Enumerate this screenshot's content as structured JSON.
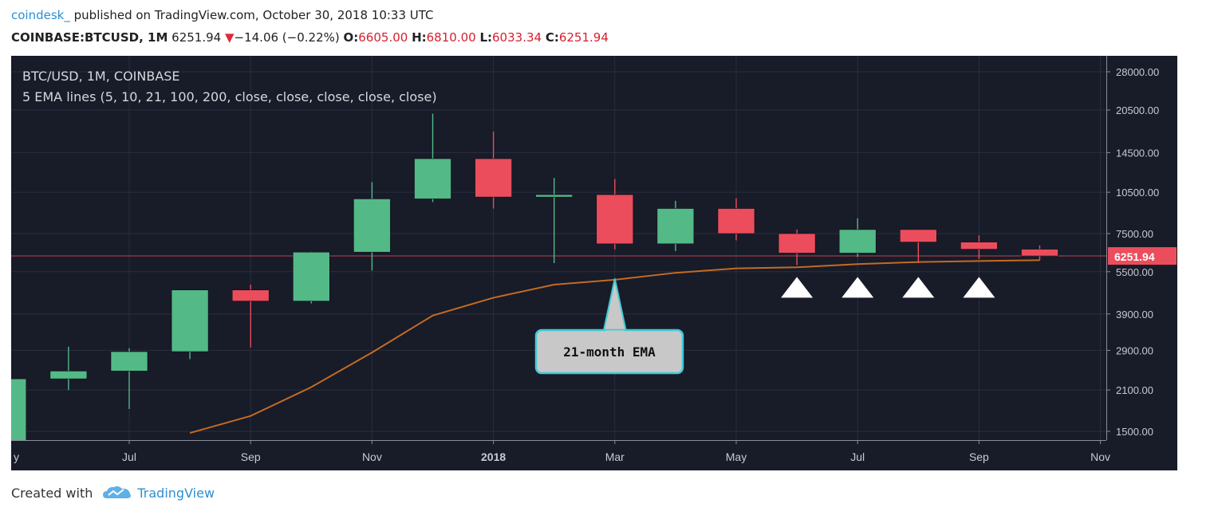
{
  "header": {
    "user": "coindesk_",
    "published_text": "published on TradingView.com, October 30, 2018 10:33 UTC",
    "symbol": "COINBASE:BTCUSD, 1M",
    "last": "6251.94",
    "change_arrow": "▼",
    "change": "−14.06 (−0.22%)",
    "o_label": "O:",
    "o_val": "6605.00",
    "h_label": "H:",
    "h_val": "6810.00",
    "l_label": "L:",
    "l_val": "6033.34",
    "c_label": "C:",
    "c_val": "6251.94"
  },
  "chart_overlay": {
    "title": "BTC/USD, 1M, COINBASE",
    "subtitle": "5 EMA lines (5, 10, 21, 100, 200, close, close, close, close, close)"
  },
  "footer": {
    "created_with": "Created with",
    "brand": "TradingView",
    "logo_icon": "tradingview-cloud-icon"
  },
  "colors": {
    "background": "#181b28",
    "up": "#53b987",
    "down": "#eb4d5c",
    "ema": "#c36b23",
    "grid": "#2a2e3e",
    "last_price_tag": "#eb4d5c",
    "callout_fill": "#c8c8c8",
    "callout_border": "#3fc9d6"
  },
  "chart_data": {
    "type": "candlestick",
    "interval": "1M",
    "y_scale": "log",
    "y_ticks": [
      1500,
      2100,
      2900,
      3900,
      5500,
      7500,
      10500,
      14500,
      20500,
      28000
    ],
    "y_tick_labels": [
      "1500.00",
      "2100.00",
      "2900.00",
      "3900.00",
      "5500.00",
      "7500.00",
      "10500.00",
      "14500.00",
      "20500.00",
      "28000.00"
    ],
    "x_tick_labels": [
      {
        "month": "2017-05",
        "label": "y"
      },
      {
        "month": "2017-07",
        "label": "Jul"
      },
      {
        "month": "2017-09",
        "label": "Sep"
      },
      {
        "month": "2017-11",
        "label": "Nov"
      },
      {
        "month": "2018-01",
        "label": "2018"
      },
      {
        "month": "2018-03",
        "label": "Mar"
      },
      {
        "month": "2018-05",
        "label": "May"
      },
      {
        "month": "2018-07",
        "label": "Jul"
      },
      {
        "month": "2018-09",
        "label": "Sep"
      },
      {
        "month": "2018-11",
        "label": "Nov"
      }
    ],
    "candles": [
      {
        "month": "2017-05",
        "open": 1350,
        "high": 2300,
        "low": 1350,
        "close": 2300
      },
      {
        "month": "2017-06",
        "open": 2300,
        "high": 2990,
        "low": 2100,
        "close": 2450
      },
      {
        "month": "2017-07",
        "open": 2450,
        "high": 2950,
        "low": 1800,
        "close": 2870
      },
      {
        "month": "2017-08",
        "open": 2870,
        "high": 4750,
        "low": 2700,
        "close": 4740
      },
      {
        "month": "2017-09",
        "open": 4740,
        "high": 4950,
        "low": 2970,
        "close": 4330
      },
      {
        "month": "2017-10",
        "open": 4330,
        "high": 6470,
        "low": 4250,
        "close": 6450
      },
      {
        "month": "2017-11",
        "open": 6450,
        "high": 11400,
        "low": 5550,
        "close": 9950
      },
      {
        "month": "2017-12",
        "open": 9950,
        "high": 19900,
        "low": 9700,
        "close": 13800
      },
      {
        "month": "2018-01",
        "open": 13800,
        "high": 17200,
        "low": 9200,
        "close": 10100
      },
      {
        "month": "2018-02",
        "open": 10100,
        "high": 11800,
        "low": 5900,
        "close": 10300
      },
      {
        "month": "2018-03",
        "open": 10300,
        "high": 11700,
        "low": 6600,
        "close": 6900
      },
      {
        "month": "2018-04",
        "open": 6900,
        "high": 9800,
        "low": 6500,
        "close": 9200
      },
      {
        "month": "2018-05",
        "open": 9200,
        "high": 10000,
        "low": 7100,
        "close": 7500
      },
      {
        "month": "2018-06",
        "open": 7500,
        "high": 7750,
        "low": 5800,
        "close": 6400
      },
      {
        "month": "2018-07",
        "open": 6400,
        "high": 8500,
        "low": 6200,
        "close": 7750
      },
      {
        "month": "2018-08",
        "open": 7750,
        "high": 7750,
        "low": 5900,
        "close": 7000
      },
      {
        "month": "2018-09",
        "open": 7000,
        "high": 7400,
        "low": 6100,
        "close": 6605
      },
      {
        "month": "2018-10",
        "open": 6605,
        "high": 6810,
        "low": 6033.34,
        "close": 6251.94
      }
    ],
    "ema21": [
      {
        "month": "2017-08",
        "value": 1480
      },
      {
        "month": "2017-09",
        "value": 1700
      },
      {
        "month": "2017-10",
        "value": 2150
      },
      {
        "month": "2017-11",
        "value": 2850
      },
      {
        "month": "2017-12",
        "value": 3850
      },
      {
        "month": "2018-01",
        "value": 4450
      },
      {
        "month": "2018-02",
        "value": 4950
      },
      {
        "month": "2018-03",
        "value": 5150
      },
      {
        "month": "2018-04",
        "value": 5450
      },
      {
        "month": "2018-05",
        "value": 5650
      },
      {
        "month": "2018-06",
        "value": 5700
      },
      {
        "month": "2018-07",
        "value": 5850
      },
      {
        "month": "2018-08",
        "value": 5950
      },
      {
        "month": "2018-09",
        "value": 6000
      },
      {
        "month": "2018-10",
        "value": 6040
      }
    ],
    "last_price": 6251.94,
    "last_price_label": "6251.94",
    "annotations": [
      {
        "text": "21-month EMA",
        "month": "2018-03",
        "value": 5200
      }
    ],
    "support_markers": [
      "2018-06",
      "2018-07",
      "2018-08",
      "2018-09"
    ]
  }
}
